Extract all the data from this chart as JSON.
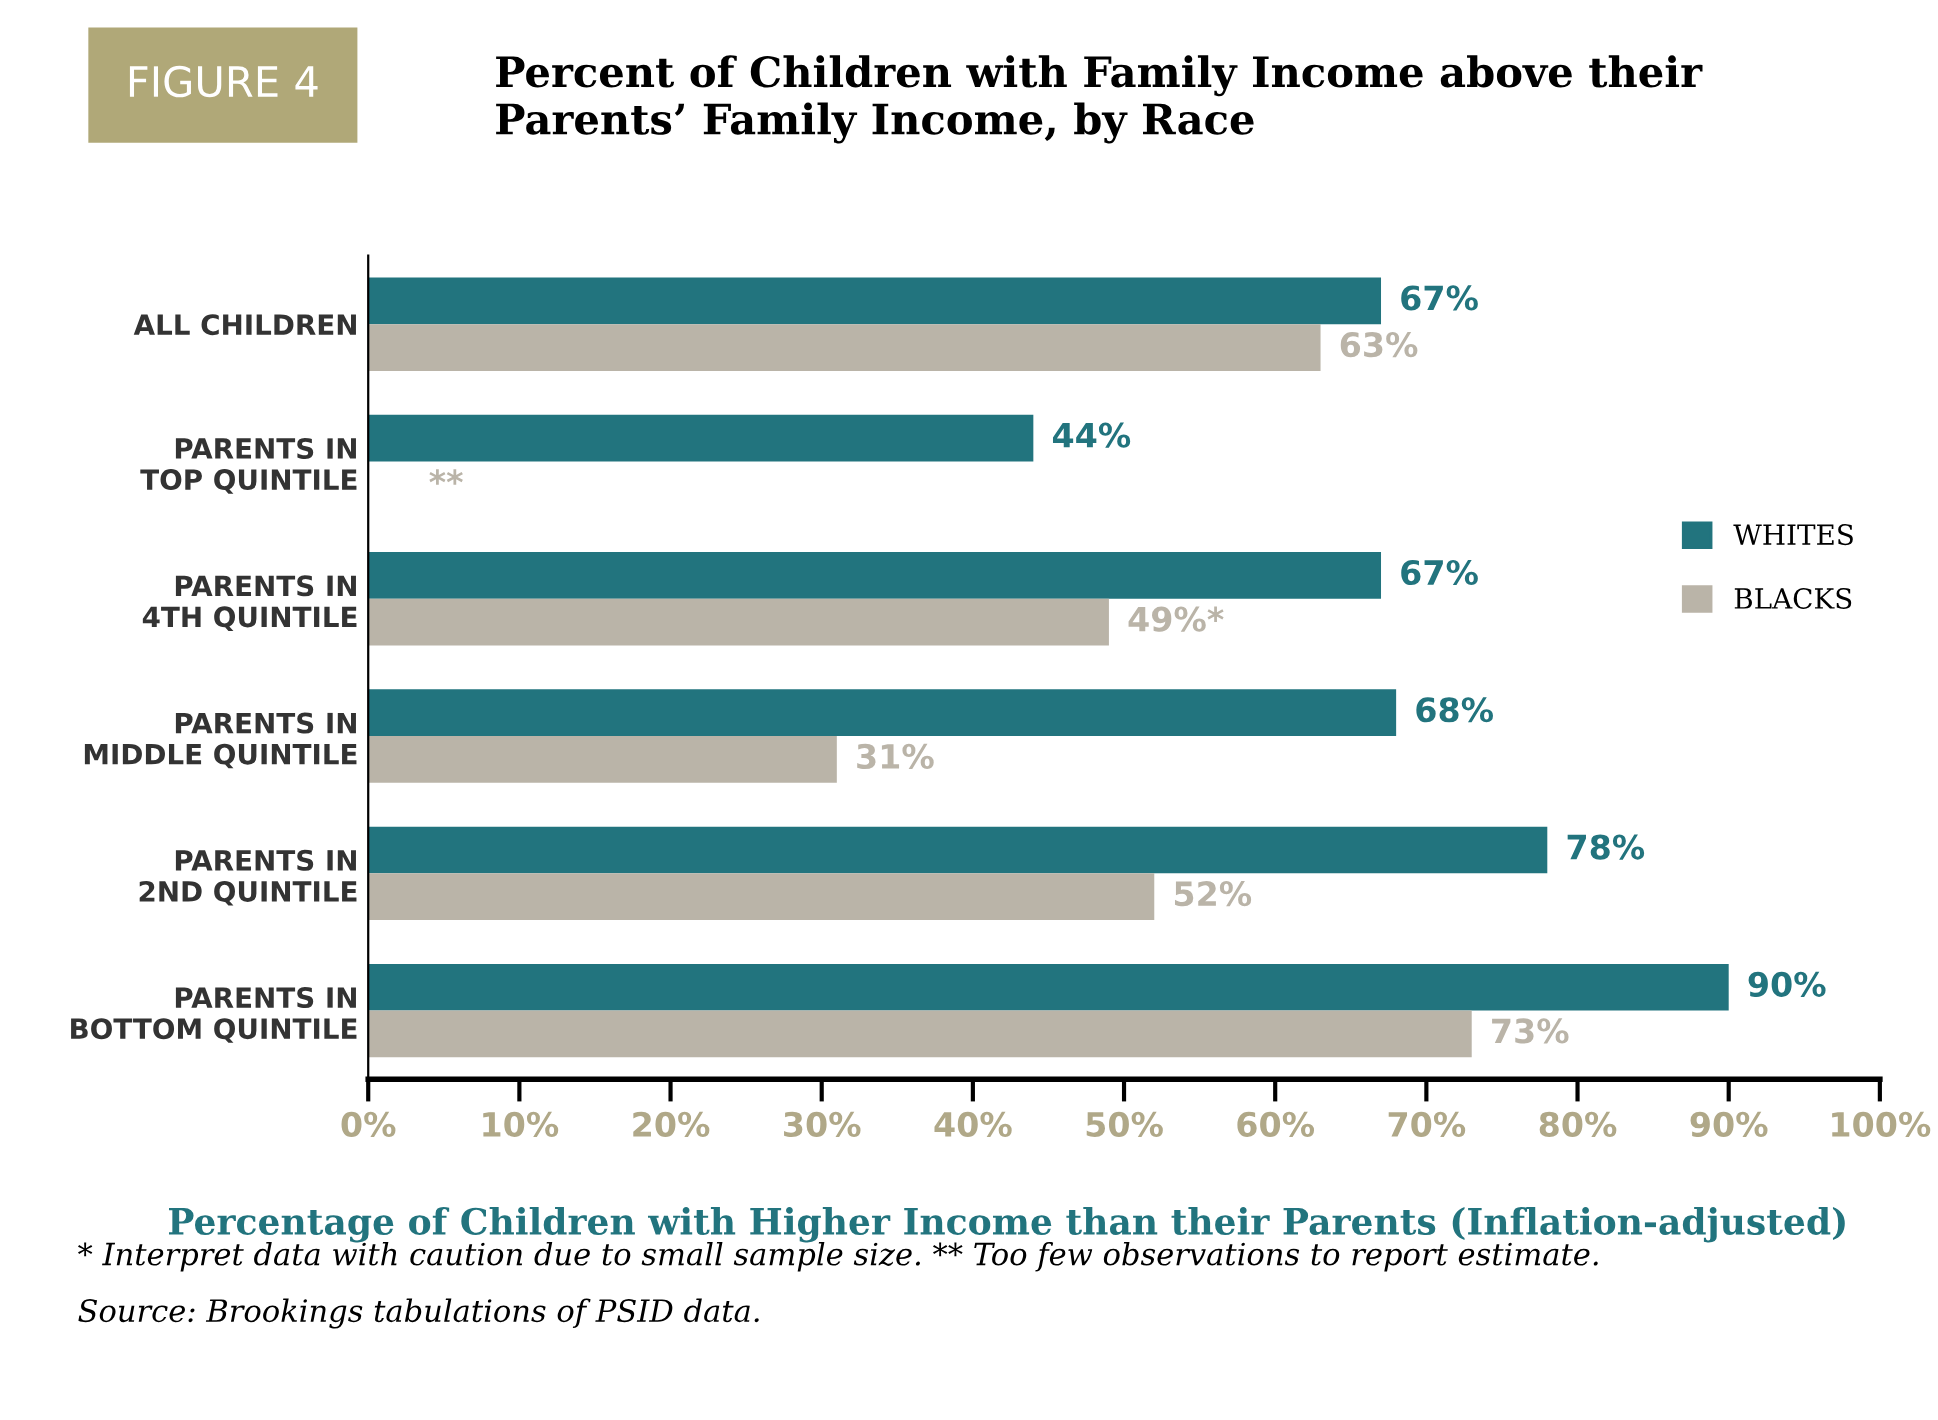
{
  "chart_data": {
    "type": "bar",
    "orientation": "horizontal",
    "title": "Percent of Children with Family Income above their\nParents’ Family Income, by Race",
    "xlabel": "Percentage of Children with Higher Income than their Parents (Inflation-adjusted)",
    "categories": [
      "ALL CHILDREN",
      "PARENTS IN\nTOP QUINTILE",
      "PARENTS IN\n4TH QUINTILE",
      "PARENTS IN\nMIDDLE QUINTILE",
      "PARENTS IN\n2ND QUINTILE",
      "PARENTS IN\nBOTTOM QUINTILE"
    ],
    "series": [
      {
        "name": "WHITES",
        "color": "#22747e",
        "values": [
          67,
          44,
          67,
          68,
          78,
          90
        ],
        "value_labels": [
          "67%",
          "44%",
          "67%",
          "68%",
          "78%",
          "90%"
        ]
      },
      {
        "name": "BLACKS",
        "color": "#bab4a8",
        "values": [
          63,
          null,
          49,
          31,
          52,
          73
        ],
        "value_labels": [
          "63%",
          "**",
          "49%*",
          "31%",
          "52%",
          "73%"
        ]
      }
    ],
    "xlim": [
      0,
      100
    ],
    "xticks": [
      {
        "value": 0,
        "label": "0%"
      },
      {
        "value": 10,
        "label": "10%"
      },
      {
        "value": 20,
        "label": "20%"
      },
      {
        "value": 30,
        "label": "30%"
      },
      {
        "value": 40,
        "label": "40%"
      },
      {
        "value": 50,
        "label": "50%"
      },
      {
        "value": 60,
        "label": "60%"
      },
      {
        "value": 70,
        "label": "70%"
      },
      {
        "value": 80,
        "label": "80%"
      },
      {
        "value": 90,
        "label": "90%"
      },
      {
        "value": 100,
        "label": "100%"
      }
    ],
    "grid": false,
    "legend": "right",
    "annotations": [
      "FIGURE 4",
      "* Interpret data with caution due to small sample size. ** Too few observations to report estimate.",
      "Source: Brookings tabulations of PSID data."
    ]
  }
}
